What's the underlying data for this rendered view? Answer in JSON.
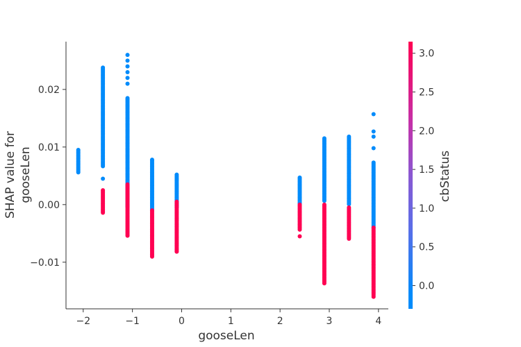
{
  "chart_data": {
    "type": "scatter",
    "xlabel": "gooseLen",
    "ylabel": "SHAP value for\ngooseLen",
    "xlim": [
      -2.35,
      4.2
    ],
    "ylim": [
      -0.0181,
      0.0283
    ],
    "x_ticks": [
      -2,
      -1,
      0,
      1,
      2,
      3,
      4
    ],
    "x_tick_labels": [
      "−2",
      "−1",
      "0",
      "1",
      "2",
      "3",
      "4"
    ],
    "y_ticks": [
      0.02,
      0.01,
      0.0,
      -0.01
    ],
    "y_tick_labels": [
      "0.02",
      "0.01",
      "0.00",
      "−0.01"
    ],
    "colorbar": {
      "label": "cbStatus",
      "range": [
        -0.3,
        3.15
      ],
      "ticks": [
        0.0,
        0.5,
        1.0,
        1.5,
        2.0,
        2.5,
        3.0
      ],
      "tick_labels": [
        "0.0",
        "0.5",
        "1.0",
        "1.5",
        "2.0",
        "2.5",
        "3.0"
      ],
      "colors": [
        "#008bfb",
        "#ff0052"
      ]
    },
    "groups": [
      {
        "x": -2.1,
        "blue": [
          0.0055,
          0.0095
        ],
        "red": null,
        "blue_isolated": []
      },
      {
        "x": -1.6,
        "blue": [
          0.0065,
          0.0238
        ],
        "red": [
          -0.0015,
          0.0025
        ],
        "blue_isolated": [
          0.0045
        ]
      },
      {
        "x": -1.1,
        "blue": [
          -0.0005,
          0.0185
        ],
        "red": [
          -0.0055,
          0.0035
        ],
        "blue_isolated": [
          0.021,
          0.022,
          0.023,
          0.024,
          0.025,
          0.026
        ]
      },
      {
        "x": -0.6,
        "blue": [
          -0.001,
          0.0078
        ],
        "red": [
          -0.0092,
          -0.001
        ],
        "blue_isolated": []
      },
      {
        "x": -0.1,
        "blue": [
          -0.0005,
          0.0052
        ],
        "red": [
          -0.0082,
          0.0005
        ],
        "blue_isolated": []
      },
      {
        "x": 2.4,
        "blue": [
          0.0,
          0.0047
        ],
        "red": [
          -0.0045,
          0.0
        ],
        "blue_isolated": []
      },
      {
        "x": 2.9,
        "blue": [
          0.0005,
          0.0115
        ],
        "red": [
          -0.0138,
          0.0
        ],
        "blue_isolated": []
      },
      {
        "x": 3.4,
        "blue": [
          0.0,
          0.0118
        ],
        "red": [
          -0.006,
          -0.0005
        ],
        "blue_isolated": []
      },
      {
        "x": 3.9,
        "blue": [
          -0.004,
          0.0073
        ],
        "red": [
          -0.0158,
          -0.004
        ],
        "blue_isolated": [
          0.0098,
          0.0118,
          0.0127,
          0.0157
        ]
      }
    ],
    "red_outliers": [
      {
        "x": 2.4,
        "y": -0.0055
      },
      {
        "x": 3.9,
        "y": -0.016
      }
    ]
  }
}
